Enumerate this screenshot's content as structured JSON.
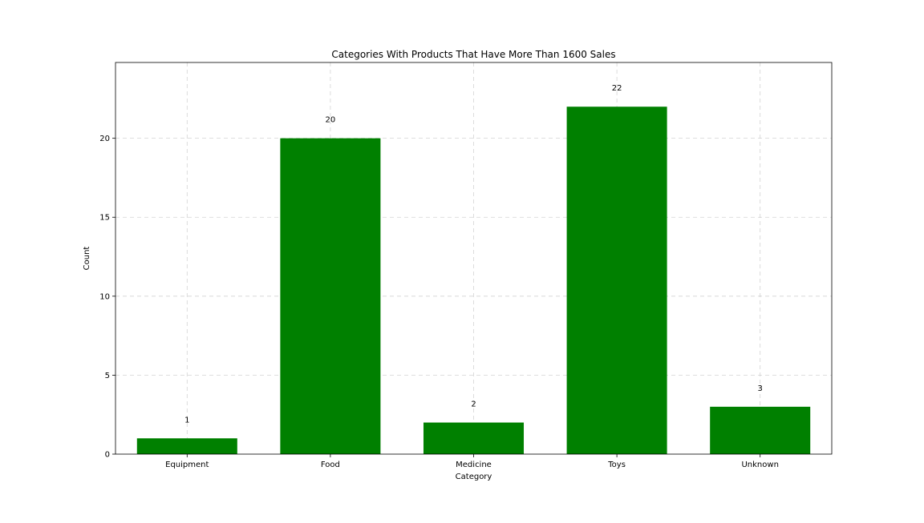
{
  "chart_data": {
    "type": "bar",
    "title": "Categories With Products That Have More Than 1600 Sales",
    "xlabel": "Category",
    "ylabel": "Count",
    "categories": [
      "Equipment",
      "Food",
      "Medicine",
      "Toys",
      "Unknown"
    ],
    "values": [
      1,
      20,
      2,
      22,
      3
    ],
    "data_labels": [
      "1",
      "20",
      "2",
      "22",
      "3"
    ],
    "ylim": [
      0,
      24.8
    ],
    "yticks": [
      0,
      5,
      10,
      15,
      20
    ],
    "ytick_labels": [
      "0",
      "5",
      "10",
      "15",
      "20"
    ],
    "grid": true,
    "bar_color": "#008000"
  }
}
